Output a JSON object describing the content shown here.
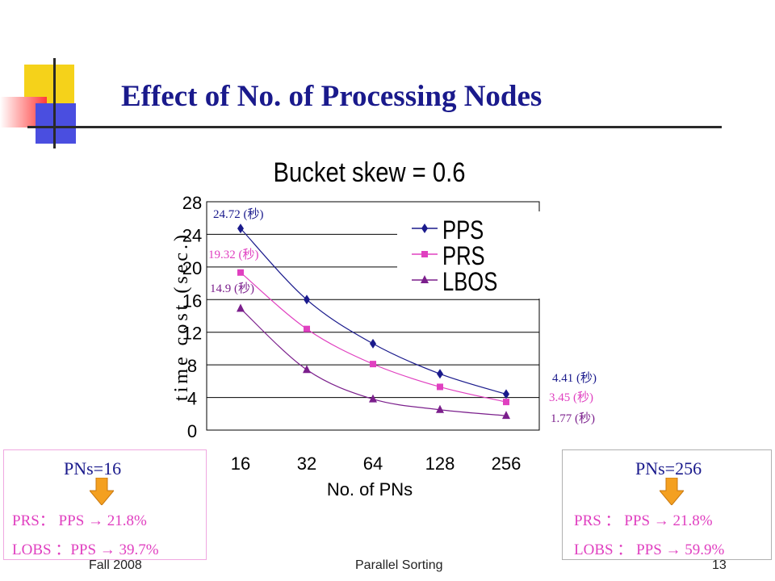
{
  "slide": {
    "title": "Effect of No. of Processing Nodes",
    "footer_left": "Fall 2008",
    "footer_center": "Parallel Sorting",
    "footer_right": "13"
  },
  "colors": {
    "PPS": "#1a1a8c",
    "PRS": "#e040c0",
    "LBOS": "#7b1f8c",
    "title": "#1a1a8c",
    "pink_text": "#e040c0",
    "purple_text": "#7b1f8c",
    "arrow": "#f4a020"
  },
  "chart_data": {
    "type": "line",
    "title": "Bucket skew = 0.6",
    "xlabel": "No. of PNs",
    "ylabel": "time cost (sec.)",
    "categories": [
      "16",
      "32",
      "64",
      "128",
      "256"
    ],
    "ylim": [
      0,
      28
    ],
    "yticks": [
      "0",
      "4",
      "8",
      "12",
      "16",
      "20",
      "24",
      "28"
    ],
    "grid": true,
    "legend_position": "top-right",
    "series": [
      {
        "name": "PPS",
        "values": [
          24.72,
          16.0,
          10.6,
          6.9,
          4.41
        ],
        "marker": "diamond"
      },
      {
        "name": "PRS",
        "values": [
          19.32,
          12.4,
          8.1,
          5.3,
          3.45
        ],
        "marker": "square"
      },
      {
        "name": "LBOS",
        "values": [
          14.9,
          7.4,
          3.8,
          2.5,
          1.77
        ],
        "marker": "triangle"
      }
    ],
    "annotations": [
      {
        "text": "24.72 (秒)",
        "series": "PPS",
        "at": "16"
      },
      {
        "text": "19.32 (秒)",
        "series": "PRS",
        "at": "16"
      },
      {
        "text": "14.9 (秒)",
        "series": "LBOS",
        "at": "16"
      },
      {
        "text": "4.41 (秒)",
        "series": "PPS",
        "at": "256"
      },
      {
        "text": "3.45 (秒)",
        "series": "PRS",
        "at": "256"
      },
      {
        "text": "1.77 (秒)",
        "series": "LBOS",
        "at": "256"
      }
    ]
  },
  "left_box": {
    "heading": "PNs=16",
    "line1": "PRS： PPS → 21.8%",
    "line2": "LOBS ：PPS → 39.7%"
  },
  "right_box": {
    "heading": "PNs=256",
    "line1": "PRS ： PPS → 21.8%",
    "line2": "LOBS ： PPS → 59.9%"
  }
}
